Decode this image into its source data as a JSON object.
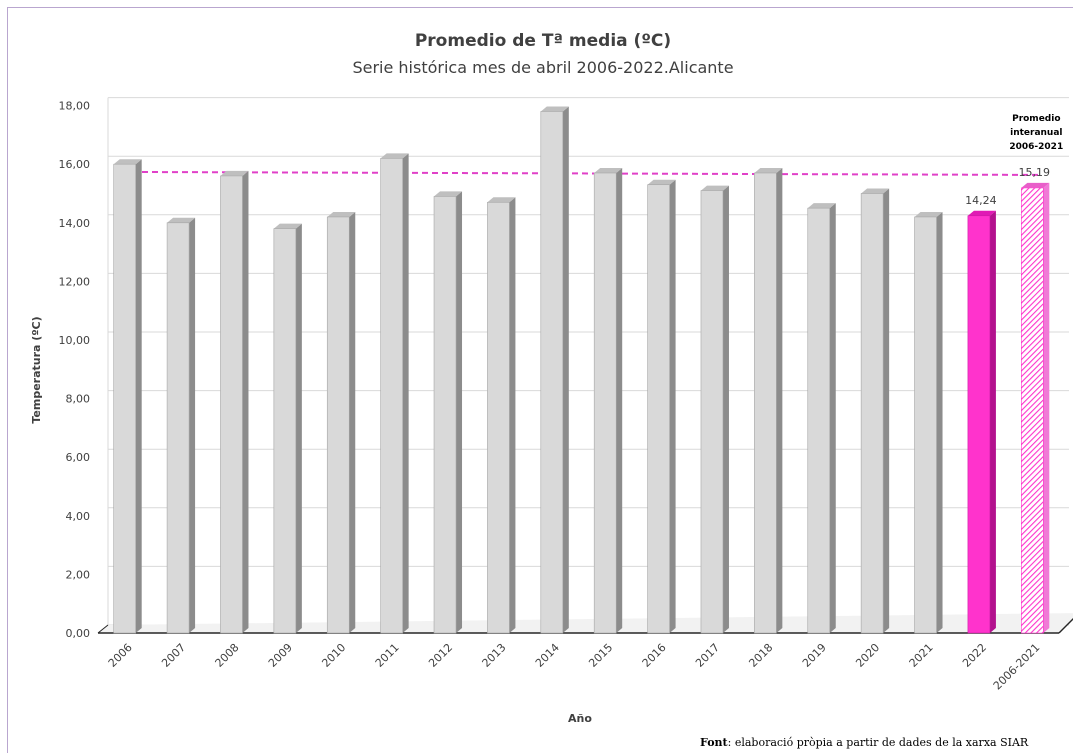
{
  "chart_data": {
    "type": "bar",
    "title": "Promedio de Tª media (ºC)",
    "subtitle": "Serie histórica mes de abril 2006-2022.Alicante",
    "xlabel": "Año",
    "ylabel": "Temperatura (ºC)",
    "ylim": [
      0,
      18
    ],
    "yticks": [
      "0,00",
      "2,00",
      "4,00",
      "6,00",
      "8,00",
      "10,00",
      "12,00",
      "14,00",
      "16,00",
      "18,00"
    ],
    "ytick_values": [
      0,
      2,
      4,
      6,
      8,
      10,
      12,
      14,
      16,
      18
    ],
    "categories": [
      "2006",
      "2007",
      "2008",
      "2009",
      "2010",
      "2011",
      "2012",
      "2013",
      "2014",
      "2015",
      "2016",
      "2017",
      "2018",
      "2019",
      "2020",
      "2021",
      "2022",
      "2006-2021"
    ],
    "values": [
      16.0,
      14.0,
      15.6,
      13.8,
      14.2,
      16.2,
      14.9,
      14.7,
      17.8,
      15.7,
      15.3,
      15.1,
      15.7,
      14.5,
      15.0,
      14.2,
      14.24,
      15.19
    ],
    "bar_styles": [
      "gray",
      "gray",
      "gray",
      "gray",
      "gray",
      "gray",
      "gray",
      "gray",
      "gray",
      "gray",
      "gray",
      "gray",
      "gray",
      "gray",
      "gray",
      "gray",
      "magenta",
      "hatched"
    ],
    "data_labels": [
      {
        "category": "2022",
        "text": "14,24"
      },
      {
        "category": "2006-2021",
        "text": "15,19"
      }
    ],
    "reference_line": {
      "value": 15.19,
      "style": "dashed",
      "color": "#e040c8"
    },
    "annotation": [
      "Promedio",
      "interanual",
      "2006-2021"
    ],
    "grid": true,
    "legend": "none",
    "colors": {
      "bar": "#d9d9d9",
      "bar_side": "#8c8c8c",
      "highlight": "#ff33cc",
      "highlight_side": "#b3128e",
      "grid": "#d9d9d9"
    }
  },
  "source": {
    "prefix": "Font",
    "text": ": elaboració pròpia a partir de dades de la xarxa SIAR"
  }
}
